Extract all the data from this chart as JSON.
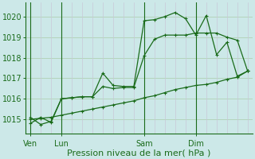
{
  "xlabel": "Pression niveau de la mer( hPa )",
  "ylim": [
    1014.3,
    1020.7
  ],
  "yticks": [
    1015,
    1016,
    1017,
    1018,
    1019,
    1020
  ],
  "bg_color": "#cce8e8",
  "line_color": "#1a6b1a",
  "grid_color_h": "#aaccaa",
  "grid_color_v": "#c8c8d8",
  "xtick_labels": [
    "Ven",
    "Lun",
    "Sam",
    "Dim"
  ],
  "xtick_positions": [
    0,
    3,
    11,
    16
  ],
  "day_vlines": [
    0,
    3,
    11,
    16
  ],
  "total_points": 22,
  "line1": [
    1014.8,
    1015.1,
    1014.85,
    1016.0,
    1016.05,
    1016.1,
    1016.1,
    1017.25,
    1016.65,
    1016.6,
    1016.6,
    1019.8,
    1019.85,
    1020.0,
    1020.2,
    1019.9,
    1019.1,
    1020.05,
    1018.15,
    1018.75,
    1017.1,
    1017.35
  ],
  "line2": [
    1015.1,
    1014.75,
    1014.9,
    1016.0,
    1016.05,
    1016.1,
    1016.1,
    1016.6,
    1016.5,
    1016.55,
    1016.55,
    1018.1,
    1018.9,
    1019.1,
    1019.1,
    1019.1,
    1019.2,
    1019.2,
    1019.2,
    1019.0,
    1018.85,
    1017.35
  ],
  "line3": [
    1015.0,
    1015.05,
    1015.1,
    1015.2,
    1015.3,
    1015.4,
    1015.5,
    1015.6,
    1015.7,
    1015.8,
    1015.9,
    1016.05,
    1016.15,
    1016.3,
    1016.45,
    1016.55,
    1016.65,
    1016.7,
    1016.8,
    1016.95,
    1017.05,
    1017.35
  ],
  "marker": "+",
  "markersize": 3.5,
  "linewidth": 0.9,
  "fontsize_label": 8,
  "fontsize_tick": 7
}
